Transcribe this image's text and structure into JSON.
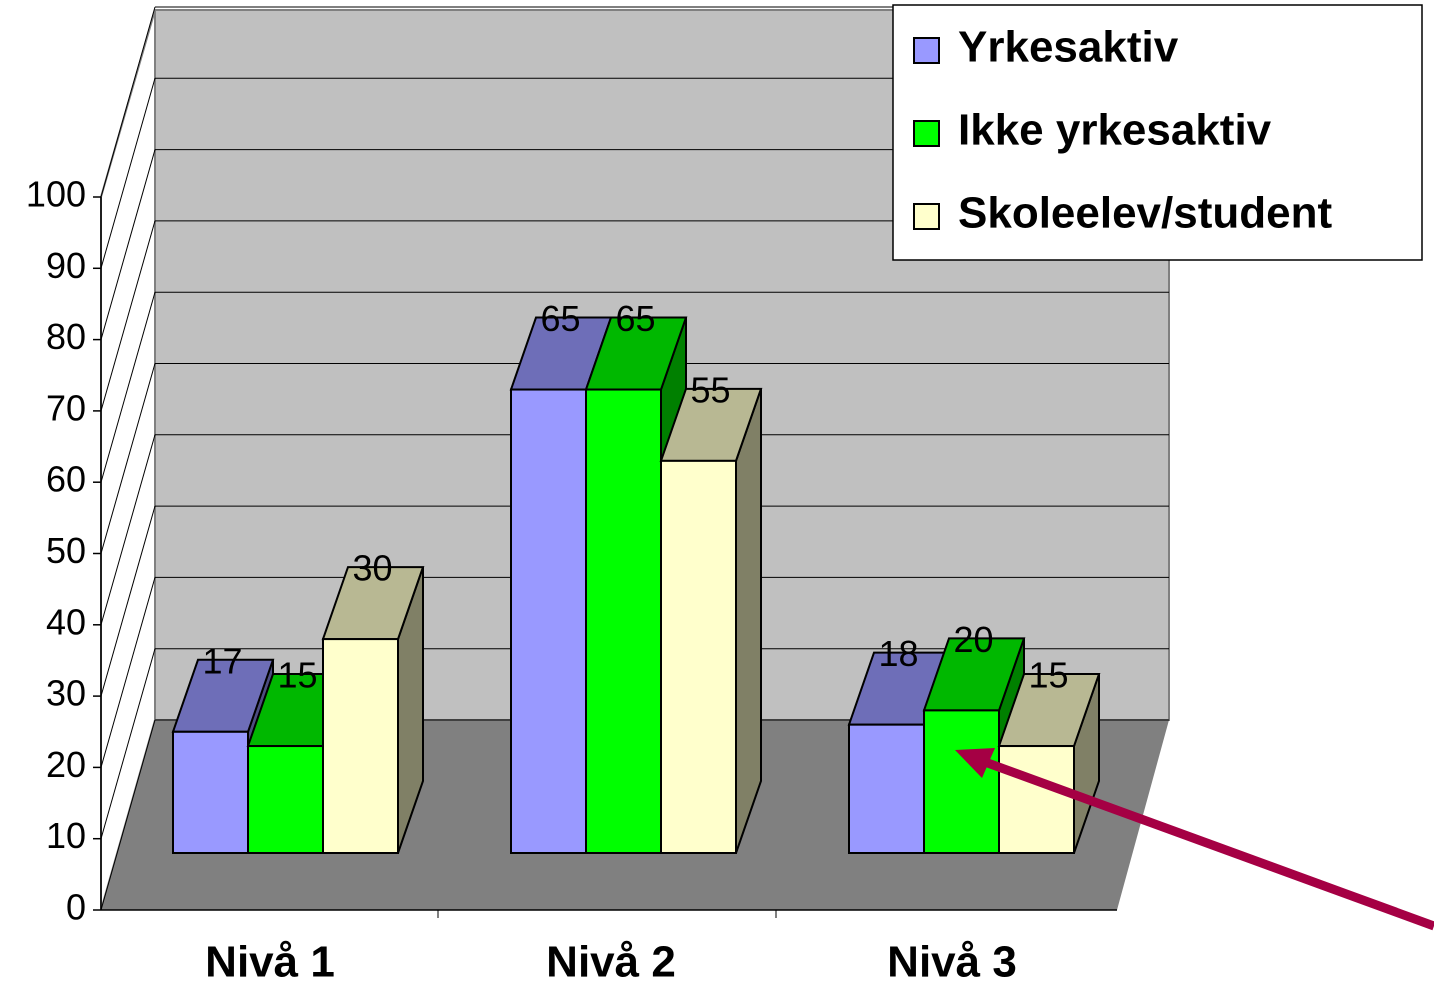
{
  "chart_data": {
    "type": "bar3d",
    "categories": [
      "Nivå 1",
      "Nivå 2",
      "Nivå 3"
    ],
    "series": [
      {
        "name": "Yrkesaktiv",
        "color": "#9999ff",
        "values": [
          17,
          65,
          18
        ]
      },
      {
        "name": "Ikke yrkesaktiv",
        "color": "#00ff00",
        "values": [
          15,
          65,
          20
        ]
      },
      {
        "name": "Skoleelev/student",
        "color": "#ffffcc",
        "values": [
          30,
          55,
          15
        ]
      }
    ],
    "ylim": [
      0,
      100
    ],
    "yticks": [
      0,
      10,
      20,
      30,
      40,
      50,
      60,
      70,
      80,
      90,
      100
    ],
    "grid": true,
    "legend": "top-right"
  }
}
